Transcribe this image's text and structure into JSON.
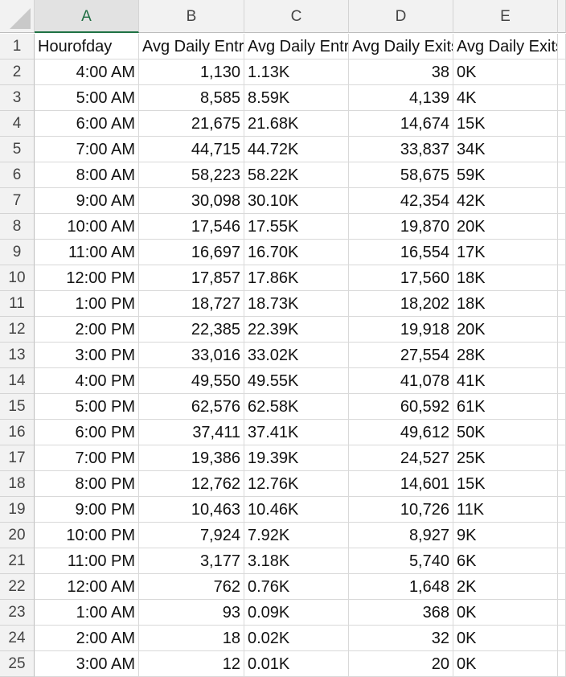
{
  "columns": [
    "A",
    "B",
    "C",
    "D",
    "E"
  ],
  "header_row": {
    "row_number": "1",
    "A": "Hourofday",
    "B": "Avg Daily Entries",
    "C": "Avg Daily Entries",
    "D": "Avg Daily Exits",
    "E": "Avg Daily Exits"
  },
  "rows": [
    {
      "n": "2",
      "A": "4:00 AM",
      "B": "1,130",
      "C": "1.13K",
      "D": "38",
      "E": "0K"
    },
    {
      "n": "3",
      "A": "5:00 AM",
      "B": "8,585",
      "C": "8.59K",
      "D": "4,139",
      "E": "4K"
    },
    {
      "n": "4",
      "A": "6:00 AM",
      "B": "21,675",
      "C": "21.68K",
      "D": "14,674",
      "E": "15K"
    },
    {
      "n": "5",
      "A": "7:00 AM",
      "B": "44,715",
      "C": "44.72K",
      "D": "33,837",
      "E": "34K"
    },
    {
      "n": "6",
      "A": "8:00 AM",
      "B": "58,223",
      "C": "58.22K",
      "D": "58,675",
      "E": "59K"
    },
    {
      "n": "7",
      "A": "9:00 AM",
      "B": "30,098",
      "C": "30.10K",
      "D": "42,354",
      "E": "42K"
    },
    {
      "n": "8",
      "A": "10:00 AM",
      "B": "17,546",
      "C": "17.55K",
      "D": "19,870",
      "E": "20K"
    },
    {
      "n": "9",
      "A": "11:00 AM",
      "B": "16,697",
      "C": "16.70K",
      "D": "16,554",
      "E": "17K"
    },
    {
      "n": "10",
      "A": "12:00 PM",
      "B": "17,857",
      "C": "17.86K",
      "D": "17,560",
      "E": "18K"
    },
    {
      "n": "11",
      "A": "1:00 PM",
      "B": "18,727",
      "C": "18.73K",
      "D": "18,202",
      "E": "18K"
    },
    {
      "n": "12",
      "A": "2:00 PM",
      "B": "22,385",
      "C": "22.39K",
      "D": "19,918",
      "E": "20K"
    },
    {
      "n": "13",
      "A": "3:00 PM",
      "B": "33,016",
      "C": "33.02K",
      "D": "27,554",
      "E": "28K"
    },
    {
      "n": "14",
      "A": "4:00 PM",
      "B": "49,550",
      "C": "49.55K",
      "D": "41,078",
      "E": "41K"
    },
    {
      "n": "15",
      "A": "5:00 PM",
      "B": "62,576",
      "C": "62.58K",
      "D": "60,592",
      "E": "61K"
    },
    {
      "n": "16",
      "A": "6:00 PM",
      "B": "37,411",
      "C": "37.41K",
      "D": "49,612",
      "E": "50K"
    },
    {
      "n": "17",
      "A": "7:00 PM",
      "B": "19,386",
      "C": "19.39K",
      "D": "24,527",
      "E": "25K"
    },
    {
      "n": "18",
      "A": "8:00 PM",
      "B": "12,762",
      "C": "12.76K",
      "D": "14,601",
      "E": "15K"
    },
    {
      "n": "19",
      "A": "9:00 PM",
      "B": "10,463",
      "C": "10.46K",
      "D": "10,726",
      "E": "11K"
    },
    {
      "n": "20",
      "A": "10:00 PM",
      "B": "7,924",
      "C": "7.92K",
      "D": "8,927",
      "E": "9K"
    },
    {
      "n": "21",
      "A": "11:00 PM",
      "B": "3,177",
      "C": "3.18K",
      "D": "5,740",
      "E": "6K"
    },
    {
      "n": "22",
      "A": "12:00 AM",
      "B": "762",
      "C": "0.76K",
      "D": "1,648",
      "E": "2K"
    },
    {
      "n": "23",
      "A": "1:00 AM",
      "B": "93",
      "C": "0.09K",
      "D": "368",
      "E": "0K"
    },
    {
      "n": "24",
      "A": "2:00 AM",
      "B": "18",
      "C": "0.02K",
      "D": "32",
      "E": "0K"
    },
    {
      "n": "25",
      "A": "3:00 AM",
      "B": "12",
      "C": "0.01K",
      "D": "20",
      "E": "0K"
    }
  ]
}
